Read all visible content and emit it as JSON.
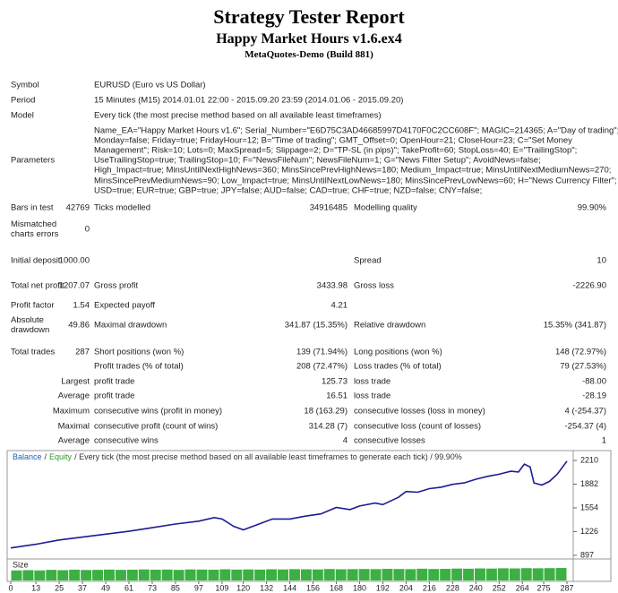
{
  "header": {
    "title": "Strategy Tester Report",
    "subtitle": "Happy Market Hours v1.6.ex4",
    "server": "MetaQuotes-Demo (Build 881)"
  },
  "info": [
    {
      "label": "Symbol",
      "text": "EURUSD (Euro vs US Dollar)"
    },
    {
      "label": "Period",
      "text": "15 Minutes (M15) 2014.01.01 22:00 - 2015.09.20 23:59 (2014.01.06 - 2015.09.20)"
    },
    {
      "label": "Model",
      "text": "Every tick (the most precise method based on all available least timeframes)"
    }
  ],
  "parameters": {
    "label": "Parameters",
    "lines": [
      "Name_EA=\"Happy Market Hours v1.6\"; Serial_Number=\"E6D75C3AD46685997D4170F0C2CC608F\"; MAGIC=214365; A=\"Day of trading\";",
      "Monday=false; Friday=true; FridayHour=12; B=\"Time of trading\"; GMT_Offset=0; OpenHour=21; CloseHour=23; C=\"Set Money",
      "Management\"; Risk=10; Lots=0; MaxSpread=5; Slippage=2; D=\"TP-SL (in pips)\"; TakeProfit=60; StopLoss=40; E=\"TrailingStop\";",
      "UseTrailingStop=true; TrailingStop=10; F=\"NewsFileNum\"; NewsFileNum=1; G=\"News Filter Setup\"; AvoidNews=false;",
      "High_Impact=true; MinsUntilNextHighNews=360; MinsSincePrevHighNews=180; Medium_Impact=true; MinsUntilNextMediumNews=270;",
      "MinsSincePrevMediumNews=90; Low_Impact=true; MinsUntilNextLowNews=180; MinsSincePrevLowNews=60; H=\"News Currency Filter\";",
      "USD=true; EUR=true; GBP=true; JPY=false; AUD=false; CAD=true; CHF=true; NZD=false; CNY=false;"
    ]
  },
  "stats": {
    "rows": [
      [
        "Bars in test",
        "42769",
        "Ticks modelled",
        "34916485",
        "Modelling quality",
        "99.90%"
      ],
      [
        "Mismatched charts errors",
        "0",
        null,
        null,
        null,
        null
      ],
      [
        "Initial deposit",
        "1000.00",
        null,
        null,
        "Spread",
        "10"
      ],
      [
        "Total net profit",
        "1207.07",
        "Gross profit",
        "3433.98",
        "Gross loss",
        "-2226.90"
      ],
      [
        "Profit factor",
        "1.54",
        "Expected payoff",
        "4.21",
        null,
        null
      ],
      [
        "Absolute drawdown",
        "49.86",
        "Maximal drawdown",
        "341.87 (15.35%)",
        "Relative drawdown",
        "15.35% (341.87)"
      ],
      [
        "Total trades",
        "287",
        "Short positions (won %)",
        "139 (71.94%)",
        "Long positions (won %)",
        "148 (72.97%)"
      ],
      [
        null,
        null,
        "Profit trades (% of total)",
        "208 (72.47%)",
        "Loss trades (% of total)",
        "79 (27.53%)"
      ],
      [
        "Largest",
        null,
        "profit trade",
        "125.73",
        "loss trade",
        "-88.00"
      ],
      [
        "Average",
        null,
        "profit trade",
        "16.51",
        "loss trade",
        "-28.19"
      ],
      [
        "Maximum",
        null,
        "consecutive wins (profit in money)",
        "18 (163.29)",
        "consecutive losses (loss in money)",
        "4 (-254.37)"
      ],
      [
        "Maximal",
        null,
        "consecutive profit (count of wins)",
        "314.28 (7)",
        "consecutive loss (count of losses)",
        "-254.37 (4)"
      ],
      [
        "Average",
        null,
        "consecutive wins",
        "4",
        "consecutive losses",
        "1"
      ]
    ]
  },
  "chart": {
    "type": "line",
    "legend": [
      {
        "text": "Balance",
        "color": "#1f5fb4"
      },
      {
        "text": "/",
        "color": "#333333"
      },
      {
        "text": "Equity",
        "color": "#2a9a2a"
      },
      {
        "text": "/ Every tick (the most precise method based on all available least timeframes to generate each tick) / 99.90%",
        "color": "#333333"
      }
    ],
    "x": [
      0,
      13,
      25,
      37,
      49,
      61,
      73,
      85,
      97,
      105,
      109,
      115,
      120,
      127,
      135,
      144,
      152,
      160,
      168,
      175,
      180,
      188,
      192,
      200,
      204,
      210,
      216,
      222,
      228,
      234,
      240,
      246,
      252,
      258,
      262,
      265,
      268,
      270,
      274,
      278,
      282,
      287
    ],
    "series": [
      {
        "name": "Balance",
        "color": "#1c1c96",
        "values": [
          1000,
          1050,
          1110,
          1150,
          1190,
          1230,
          1280,
          1330,
          1370,
          1420,
          1400,
          1300,
          1250,
          1320,
          1400,
          1400,
          1440,
          1470,
          1560,
          1530,
          1580,
          1620,
          1600,
          1700,
          1780,
          1770,
          1820,
          1840,
          1880,
          1900,
          1950,
          1990,
          2020,
          2060,
          2050,
          2160,
          2120,
          1900,
          1870,
          1920,
          2020,
          2200
        ]
      }
    ],
    "xlim": [
      0,
      287
    ],
    "xticks": [
      0,
      13,
      25,
      37,
      49,
      61,
      73,
      85,
      97,
      109,
      120,
      132,
      144,
      156,
      168,
      180,
      192,
      204,
      216,
      228,
      240,
      252,
      264,
      275,
      287
    ],
    "ylim": [
      872,
      2322
    ],
    "yticks": [
      2210,
      1882,
      1554,
      1226,
      897
    ],
    "size": {
      "label": "Size",
      "color": "#3cb043",
      "ylim": [
        0,
        1
      ],
      "values": [
        0.7,
        0.72,
        0.7,
        0.74,
        0.72,
        0.75,
        0.73,
        0.74,
        0.76,
        0.74,
        0.75,
        0.77,
        0.75,
        0.76,
        0.74,
        0.77,
        0.76,
        0.75,
        0.78,
        0.76,
        0.77,
        0.76,
        0.78,
        0.77,
        0.79,
        0.78,
        0.77,
        0.8,
        0.78,
        0.79,
        0.8,
        0.79,
        0.81,
        0.8,
        0.79,
        0.82,
        0.8,
        0.81,
        0.83,
        0.82,
        0.84,
        0.83,
        0.85,
        0.84,
        0.86,
        0.85,
        0.86,
        0.87
      ]
    }
  }
}
